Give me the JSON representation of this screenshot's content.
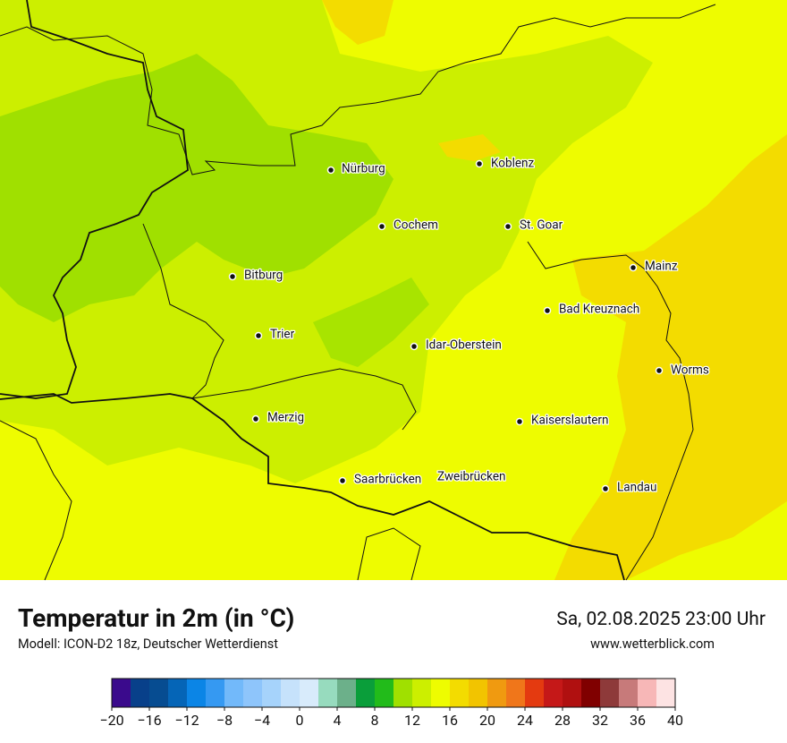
{
  "header": {
    "title": "Temperatur in 2m (in °C)",
    "model": "Modell: ICON-D2 18z, Deutscher Wetterdienst",
    "datetime": "Sa, 02.08.2025 23:00 Uhr",
    "website": "www.wetterblick.com"
  },
  "cities": [
    "Nürburg",
    "Koblenz",
    "Cochem",
    "St. Goar",
    "Bitburg",
    "Mainz",
    "Bad Kreuznach",
    "Trier",
    "Idar-Oberstein",
    "Worms",
    "Merzig",
    "Kaiserslautern",
    "Saarbrücken",
    "Zweibrücken",
    "Landau"
  ],
  "colorbar": {
    "lim": [
      -20,
      40
    ],
    "colors": [
      "#3a0a8c",
      "#08408a",
      "#064c91",
      "#0565b7",
      "#0b85e6",
      "#3599f2",
      "#72b9fa",
      "#8ec5fb",
      "#a6d3fb",
      "#c6e2fb",
      "#d8ebfb",
      "#97dbbe",
      "#6cb08a",
      "#0a9e3a",
      "#22bb1a",
      "#a0e000",
      "#ccef00",
      "#eefc00",
      "#f3dc00",
      "#f2c400",
      "#f09a10",
      "#f0761a",
      "#e43a10",
      "#c51818",
      "#b01010",
      "#800000",
      "#8e3a3a",
      "#c77a7a",
      "#f7b7b7",
      "#fde3e3"
    ],
    "ticks": [
      {
        "value": -20,
        "label": "−20"
      },
      {
        "value": -16,
        "label": "−16"
      },
      {
        "value": -12,
        "label": "−12"
      },
      {
        "value": -8,
        "label": "−8"
      },
      {
        "value": -4,
        "label": "−4"
      },
      0,
      4,
      8,
      12,
      16,
      20,
      24,
      28,
      32,
      36,
      40
    ]
  }
}
